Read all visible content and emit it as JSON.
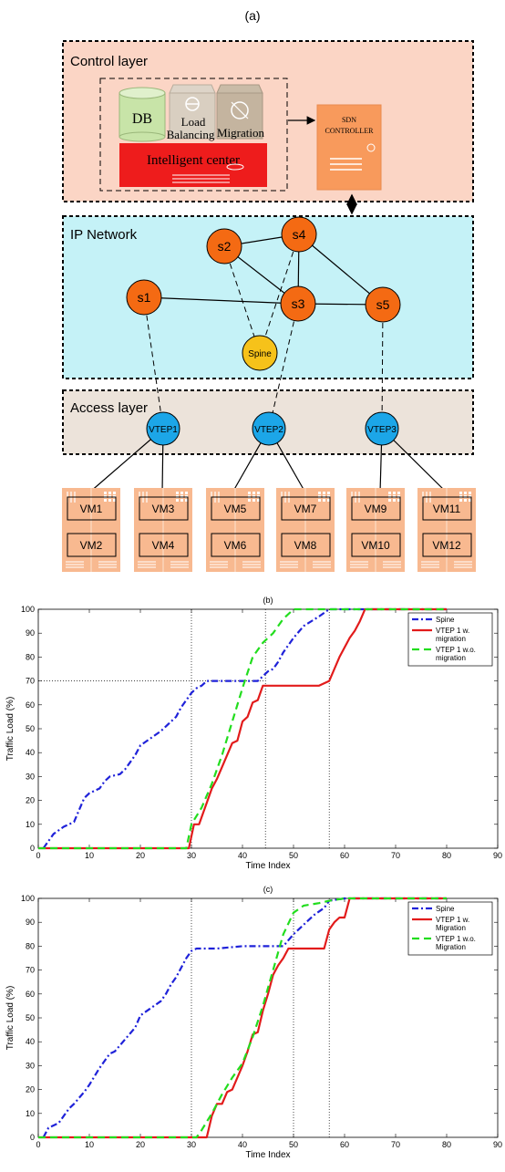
{
  "panel_a": {
    "label": "(a)",
    "control_layer": {
      "title": "Control layer",
      "db": "DB",
      "load_balancing_line1": "Load",
      "load_balancing_line2": "Balancing",
      "migration": "Migration",
      "intelligent_center": "Intelligent center",
      "sdn_line1": "SDN",
      "sdn_line2": "CONTROLLER"
    },
    "ip_network": {
      "title": "IP Network",
      "switches": [
        "s1",
        "s2",
        "s3",
        "s4",
        "s5"
      ],
      "spine": "Spine"
    },
    "access_layer": {
      "title": "Access layer",
      "vteps": [
        "VTEP1",
        "VTEP2",
        "VTEP3"
      ]
    },
    "vms": [
      "VM1",
      "VM2",
      "VM3",
      "VM4",
      "VM5",
      "VM6",
      "VM7",
      "VM8",
      "VM9",
      "VM10",
      "VM11",
      "VM12"
    ],
    "colors": {
      "control_bg": "#fbd5c5",
      "ip_bg": "#c5f2f7",
      "access_bg": "#ece3da",
      "switch": "#f46a13",
      "spine": "#f6c21a",
      "vtep": "#1ca6e8",
      "server": "#f8b990",
      "sdn": "#f89a5c",
      "intelligent": "#ee1c1c",
      "db": "#c8e4a8"
    }
  },
  "chart_data": [
    {
      "type": "line",
      "title": "(b)",
      "xlabel": "Time Index",
      "ylabel": "Traffic Load (%)",
      "xlim": [
        0,
        90
      ],
      "ylim": [
        0,
        100
      ],
      "xticks": [
        0,
        10,
        20,
        30,
        40,
        50,
        60,
        70,
        80,
        90
      ],
      "yticks": [
        0,
        10,
        20,
        30,
        40,
        50,
        60,
        70,
        80,
        90,
        100
      ],
      "legend_position": "top-right",
      "legend_lines": [
        [
          "Spine"
        ],
        [
          "VTEP 1 w.",
          "migration"
        ],
        [
          "VTEP 1 w.o.",
          "migration"
        ]
      ],
      "vlines": [
        30,
        44.5,
        57
      ],
      "hline": {
        "y": 70,
        "x_to": 44.5
      },
      "series": [
        {
          "name": "Spine",
          "color": "#1f22d9",
          "dash": "7,3,2,3",
          "x": [
            1,
            2,
            3,
            5,
            7,
            8,
            9,
            10,
            12,
            13,
            14,
            16,
            17,
            18,
            19,
            20,
            22,
            24,
            25,
            26,
            27,
            28,
            29,
            30,
            31,
            32,
            33,
            35,
            37,
            40,
            43,
            44,
            45,
            46,
            47,
            48,
            50,
            52,
            55,
            57,
            60,
            70,
            80
          ],
          "y": [
            0,
            3,
            6,
            9,
            11,
            16,
            21,
            23,
            25,
            28,
            30,
            31,
            33,
            36,
            39,
            43,
            46,
            49,
            51,
            53,
            55,
            59,
            62,
            65,
            67,
            68,
            70,
            70,
            70,
            70,
            70,
            72,
            74,
            75,
            78,
            82,
            88,
            93,
            97,
            100,
            100,
            100,
            100
          ]
        },
        {
          "name": "VTEP 1 w. migration",
          "color": "#e21b1b",
          "dash": "",
          "x": [
            0,
            10,
            20,
            29.5,
            30.5,
            31.5,
            33,
            34,
            35,
            36,
            37,
            38,
            39,
            40,
            41,
            42,
            43,
            44,
            44.5,
            50,
            55,
            57,
            58,
            59,
            60,
            61,
            62,
            63,
            64,
            70,
            80
          ],
          "y": [
            0,
            0,
            0,
            0,
            10,
            10,
            19,
            25,
            29,
            34,
            39,
            44,
            45,
            53,
            55,
            61,
            62,
            68,
            68,
            68,
            68,
            70,
            75,
            80,
            84,
            88,
            91,
            95,
            100,
            100,
            100
          ]
        },
        {
          "name": "VTEP 1 w.o. migration",
          "color": "#22dd1e",
          "dash": "8,5",
          "x": [
            0,
            10,
            20,
            29,
            30,
            32,
            34,
            36,
            38,
            40,
            42,
            44,
            46,
            48,
            50,
            60,
            70,
            80
          ],
          "y": [
            0,
            0,
            0,
            0,
            10,
            17,
            27,
            39,
            53,
            67,
            80,
            86,
            90,
            96,
            100,
            100,
            100,
            100
          ]
        }
      ]
    },
    {
      "type": "line",
      "title": "(c)",
      "xlabel": "Time Index",
      "ylabel": "Traffic Load (%)",
      "xlim": [
        0,
        90
      ],
      "ylim": [
        0,
        100
      ],
      "xticks": [
        0,
        10,
        20,
        30,
        40,
        50,
        60,
        70,
        80,
        90
      ],
      "yticks": [
        0,
        10,
        20,
        30,
        40,
        50,
        60,
        70,
        80,
        90,
        100
      ],
      "legend_position": "top-right",
      "legend_lines": [
        [
          "Spine"
        ],
        [
          "VTEP 1 w.",
          "Migration"
        ],
        [
          "VTEP 1 w.o.",
          "Migration"
        ]
      ],
      "vlines": [
        30,
        50,
        57
      ],
      "hline": null,
      "series": [
        {
          "name": "Spine",
          "color": "#1f22d9",
          "dash": "7,3,2,3",
          "x": [
            1,
            2,
            4,
            6,
            7,
            9,
            10,
            12,
            14,
            15,
            17,
            19,
            20,
            22,
            24,
            25,
            26,
            27,
            28,
            29,
            30,
            31,
            32,
            35,
            40,
            45,
            48,
            50,
            52,
            54,
            56,
            57,
            60,
            70,
            80
          ],
          "y": [
            0,
            4,
            6,
            12,
            14,
            19,
            22,
            29,
            35,
            36,
            41,
            46,
            51,
            54,
            57,
            60,
            64,
            67,
            71,
            75,
            78,
            79,
            79,
            79,
            80,
            80,
            80,
            85,
            89,
            93,
            96,
            99,
            100,
            100,
            100
          ]
        },
        {
          "name": "VTEP 1 w. Migration",
          "color": "#e21b1b",
          "dash": "",
          "x": [
            0,
            10,
            20,
            33,
            34,
            35,
            36,
            37,
            38,
            39,
            40,
            41,
            42,
            43,
            44,
            45,
            46,
            47,
            48,
            49,
            50,
            55,
            56,
            57,
            58,
            59,
            60,
            61,
            70,
            80
          ],
          "y": [
            0,
            0,
            0,
            0,
            9,
            14,
            14,
            19,
            20,
            25,
            30,
            36,
            43,
            44,
            53,
            60,
            68,
            72,
            75,
            79,
            79,
            79,
            79,
            87,
            90,
            92,
            92,
            100,
            100,
            100
          ]
        },
        {
          "name": "VTEP 1 w.o. Migration",
          "color": "#22dd1e",
          "dash": "8,5",
          "x": [
            0,
            10,
            20,
            31,
            32,
            34,
            36,
            38,
            40,
            42,
            44,
            46,
            48,
            50,
            52,
            55,
            57,
            60,
            70,
            80
          ],
          "y": [
            0,
            0,
            0,
            0,
            3,
            10,
            18,
            25,
            31,
            42,
            55,
            70,
            85,
            94,
            97,
            98,
            99,
            100,
            100,
            100
          ]
        }
      ]
    }
  ]
}
